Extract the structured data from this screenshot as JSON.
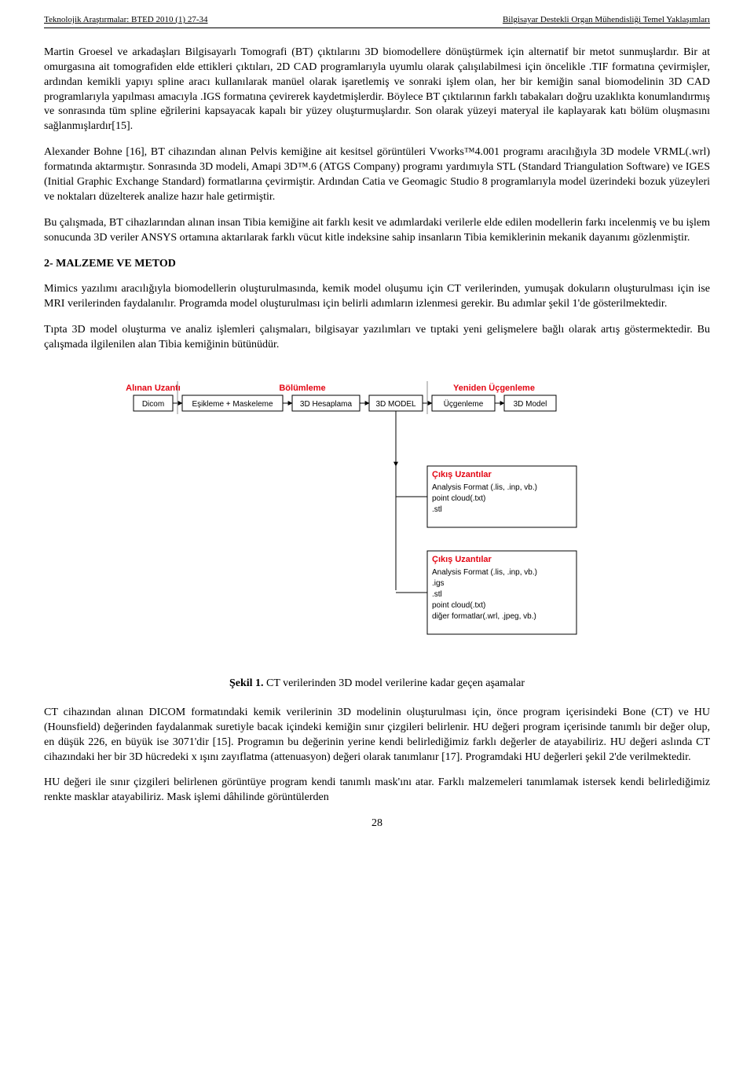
{
  "header": {
    "left": "Teknolojik Araştırmalar: BTED 2010 (1) 27-34",
    "right": "Bilgisayar Destekli Organ Mühendisliği Temel Yaklaşımları"
  },
  "paragraphs": {
    "p1": "Martin Groesel ve arkadaşları Bilgisayarlı Tomografi (BT) çıktılarını 3D biomodellere dönüştürmek için alternatif bir metot sunmuşlardır. Bir at omurgasına ait tomografiden elde ettikleri çıktıları, 2D CAD programlarıyla uyumlu olarak çalışılabilmesi için öncelikle .TIF formatına çevirmişler, ardından kemikli yapıyı spline aracı kullanılarak manüel olarak işaretlemiş ve sonraki işlem olan, her bir kemiğin sanal biomodelinin 3D CAD programlarıyla yapılması amacıyla .IGS formatına çevirerek kaydetmişlerdir. Böylece BT çıktılarının farklı tabakaları doğru uzaklıkta konumlandırmış ve sonrasında tüm spline eğrilerini kapsayacak kapalı bir yüzey oluşturmuşlardır. Son olarak yüzeyi materyal ile kaplayarak katı bölüm oluşmasını sağlanmışlardır[15].",
    "p2": "Alexander Bohne [16], BT cihazından alınan Pelvis kemiğine ait kesitsel görüntüleri Vworks™4.001 programı aracılığıyla 3D modele VRML(.wrl) formatında aktarmıştır. Sonrasında 3D modeli, Amapi 3D™.6 (ATGS Company) programı yardımıyla STL (Standard Triangulation Software) ve IGES (Initial Graphic Exchange Standard) formatlarına çevirmiştir. Ardından Catia ve Geomagic Studio 8 programlarıyla model üzerindeki bozuk yüzeyleri ve noktaları düzelterek analize hazır hale getirmiştir.",
    "p3": "Bu çalışmada, BT cihazlarından alınan insan Tibia kemiğine ait farklı kesit ve adımlardaki verilerle elde edilen modellerin farkı incelenmiş ve bu işlem sonucunda 3D veriler ANSYS ortamına aktarılarak farklı vücut kitle indeksine sahip insanların Tibia kemiklerinin mekanik dayanımı gözlenmiştir.",
    "section2_title": "2- MALZEME VE METOD",
    "p4": "Mimics yazılımı aracılığıyla biomodellerin oluşturulmasında, kemik model oluşumu için CT verilerinden, yumuşak dokuların oluşturulması için ise MRI verilerinden faydalanılır. Programda model oluşturulması için belirli adımların izlenmesi gerekir. Bu adımlar şekil 1'de gösterilmektedir.",
    "p5": "Tıpta 3D model oluşturma ve analiz işlemleri çalışmaları, bilgisayar yazılımları ve tıptaki yeni gelişmelere bağlı olarak artış göstermektedir. Bu çalışmada ilgilenilen alan Tibia kemiğinin bütünüdür.",
    "p6": "CT cihazından alınan DICOM formatındaki kemik verilerinin 3D modelinin oluşturulması için, önce program içerisindeki Bone (CT) ve HU (Hounsfield) değerinden faydalanmak suretiyle bacak içindeki kemiğin sınır çizgileri belirlenir. HU değeri program içerisinde tanımlı bir değer olup, en düşük 226, en büyük ise 3071'dir [15]. Programın bu değerinin yerine kendi belirlediğimiz farklı değerler de atayabiliriz. HU değeri aslında CT cihazındaki her bir 3D hücredeki x ışını zayıflatma (attenuasyon) değeri olarak tanımlanır [17]. Programdaki HU değerleri şekil 2'de verilmektedir.",
    "p7": "HU değeri ile sınır çizgileri belirlenen görüntüye program kendi tanımlı mask'ını atar. Farklı malzemeleri tanımlamak istersek kendi belirlediğimiz renkte masklar atayabiliriz. Mask işlemi dâhilinde görüntülerden"
  },
  "figure1": {
    "caption_bold": "Şekil 1.",
    "caption_text": " CT verilerinden 3D model verilerine kadar geçen aşamalar",
    "colors": {
      "heading": "#e30613",
      "box_stroke": "#000000",
      "arrow_stroke": "#000000",
      "line_gray": "#8f8f8f",
      "text": "#000000",
      "bg": "#ffffff"
    },
    "font_family": "Arial, Helvetica, sans-serif",
    "heading_fontsize": 11,
    "box_fontsize": 10,
    "row1_headings": [
      "Alınan Uzantı",
      "Bölümleme",
      "Yeniden Üçgenleme"
    ],
    "row1_boxes": [
      "Dicom",
      "Eşikleme + Maskeleme",
      "3D Hesaplama",
      "3D MODEL",
      "Üçgenleme",
      "3D Model"
    ],
    "out1_title": "Çıkış Uzantılar",
    "out1_lines": [
      "Analysis Format (.lis, .inp, vb.)",
      "point cloud(.txt)",
      ".stl"
    ],
    "out2_title": "Çıkış Uzantılar",
    "out2_lines": [
      "Analysis Format (.lis, .inp, vb.)",
      ".igs",
      ".stl",
      "point cloud(.txt)",
      "diğer formatlar(.wrl, .jpeg, vb.)"
    ]
  },
  "page_number": "28"
}
